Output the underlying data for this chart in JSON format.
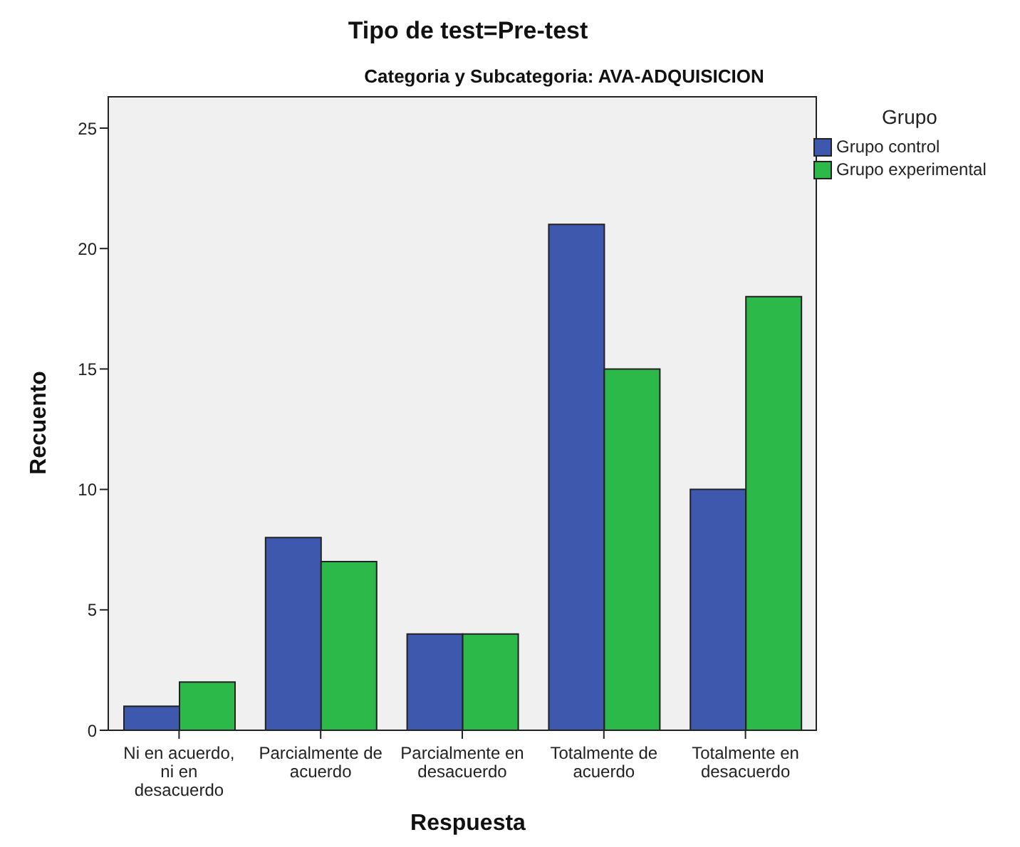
{
  "chart_data": {
    "type": "bar",
    "title": "Tipo de test=Pre-test",
    "subtitle": "Categoria y Subcategoria: AVA-ADQUISICION",
    "xlabel": "Respuesta",
    "ylabel": "Recuento",
    "legend_title": "Grupo",
    "categories": [
      "Ni en acuerdo, ni en desacuerdo",
      "Parcialmente de acuerdo",
      "Parcialmente en desacuerdo",
      "Totalmente de acuerdo",
      "Totalmente en desacuerdo"
    ],
    "series": [
      {
        "name": "Grupo control",
        "color": "#3d58ad",
        "values": [
          1,
          8,
          4,
          21,
          10
        ]
      },
      {
        "name": "Grupo experimental",
        "color": "#2db84a",
        "values": [
          2,
          7,
          4,
          15,
          18
        ]
      }
    ],
    "ylim": [
      0,
      26.3
    ],
    "yticks": [
      0,
      5,
      10,
      15,
      20,
      25
    ],
    "legend": "top right"
  }
}
